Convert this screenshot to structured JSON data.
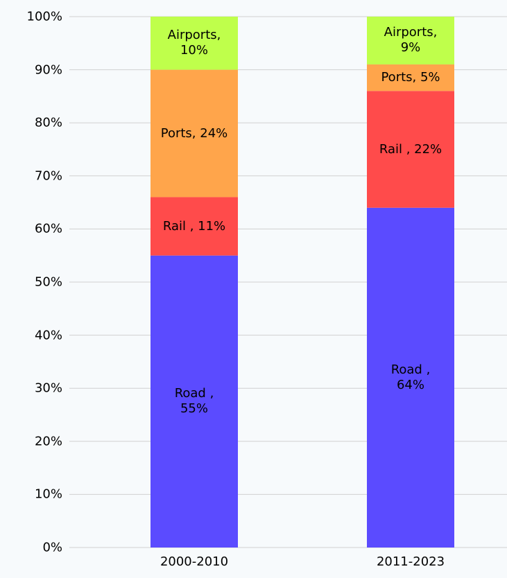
{
  "chart_data": {
    "type": "stacked_bar",
    "categories": [
      "2000-2010",
      "2011-2023"
    ],
    "series": [
      {
        "color": "#5b4bff",
        "values": [
          55,
          64
        ],
        "value_labels": [
          "Road ,\n55%",
          "Road ,\n64%"
        ]
      },
      {
        "color": "#ff4b4b",
        "values": [
          11,
          22
        ],
        "value_labels": [
          "Rail , 11%",
          "Rail , 22%"
        ]
      },
      {
        "color": "#ffa54b",
        "values": [
          24,
          5
        ],
        "value_labels": [
          "Ports, 24%",
          "Ports, 5%"
        ]
      },
      {
        "color": "#bfff4b",
        "values": [
          10,
          9
        ],
        "value_labels": [
          "Airports,\n10%",
          "Airports,\n9%"
        ]
      }
    ],
    "ylim": [
      0,
      100
    ],
    "yticks": [
      {
        "value": 0,
        "label": "0%"
      },
      {
        "value": 10,
        "label": "10%"
      },
      {
        "value": 20,
        "label": "20%"
      },
      {
        "value": 30,
        "label": "30%"
      },
      {
        "value": 40,
        "label": "40%"
      },
      {
        "value": 50,
        "label": "50%"
      },
      {
        "value": 60,
        "label": "60%"
      },
      {
        "value": 70,
        "label": "70%"
      },
      {
        "value": 80,
        "label": "80%"
      },
      {
        "value": 90,
        "label": "90%"
      },
      {
        "value": 100,
        "label": "100%"
      }
    ],
    "grid": true
  }
}
